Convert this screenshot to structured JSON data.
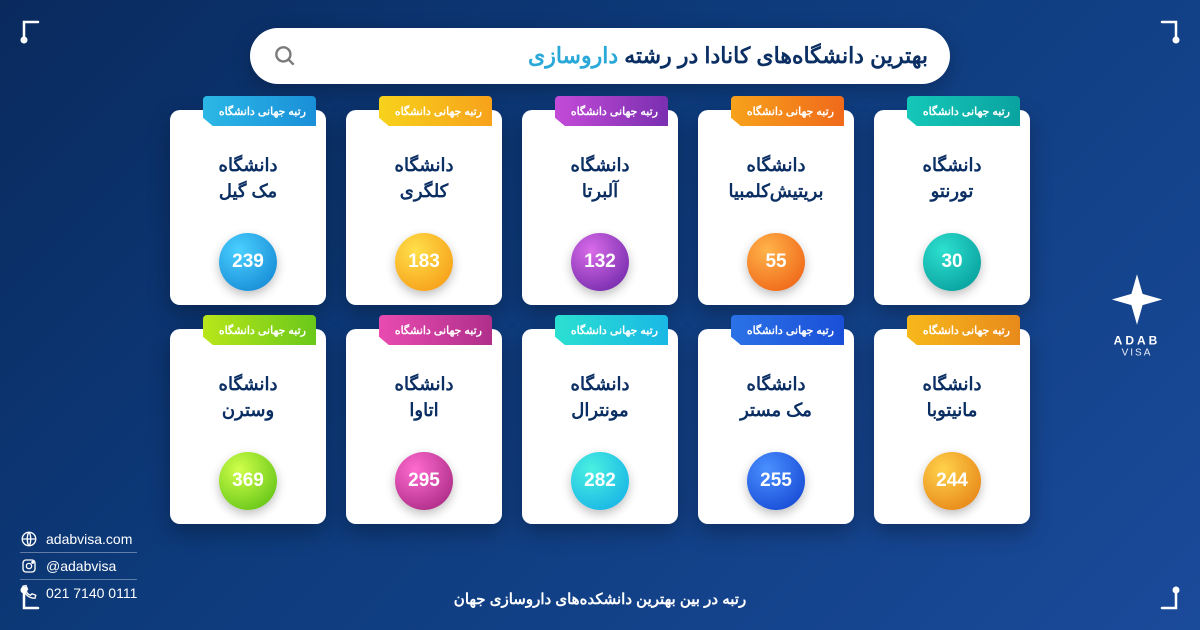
{
  "title_main": "بهترین دانشگاه‌های کانادا در رشته ",
  "title_highlight": "داروسازی",
  "tab_label": "رتبه جهانی دانشگاه",
  "caption": "رتبه در بین بهترین دانشکده‌های داروسازی جهان",
  "contact": {
    "web": "adabvisa.com",
    "social": "@adabvisa",
    "phone": "021 7140 0111"
  },
  "logo": {
    "line1": "ADAB",
    "line2": "VISA"
  },
  "tab_gradients": {
    "teal": "linear-gradient(90deg,#14c8b8 0%,#0aa3a0 100%)",
    "orange": "linear-gradient(90deg,#f7a21b 0%,#f06a1b 100%)",
    "violet": "linear-gradient(90deg,#c44bd8 0%,#7a2fb0 100%)",
    "yellow": "linear-gradient(90deg,#f7d21b 0%,#f7a21b 100%)",
    "cyan": "linear-gradient(90deg,#2bb8e6 0%,#1a8fd8 100%)",
    "gold": "linear-gradient(90deg,#f7b81b 0%,#e88a1b 100%)",
    "blue": "linear-gradient(90deg,#2b72e6 0%,#1a4fd8 100%)",
    "aqua": "linear-gradient(90deg,#2be0d0 0%,#1ab8e6 100%)",
    "pink": "linear-gradient(90deg,#e84bb0 0%,#b02f8a 100%)",
    "lime": "linear-gradient(90deg,#b8e61a 0%,#6ac81a 100%)"
  },
  "badge_gradients": {
    "teal": "radial-gradient(circle at 35% 30%,#2de0cf 0%,#0aa3a0 80%)",
    "orange": "radial-gradient(circle at 35% 30%,#ffb44a 0%,#f06a1b 80%)",
    "violet": "radial-gradient(circle at 35% 30%,#d96be8 0%,#7a2fb0 80%)",
    "yellow": "radial-gradient(circle at 35% 30%,#ffe04a 0%,#f7a21b 80%)",
    "cyan": "radial-gradient(circle at 35% 30%,#4ad0ff 0%,#1a8fd8 80%)",
    "gold": "radial-gradient(circle at 35% 30%,#ffd24a 0%,#e88a1b 80%)",
    "blue": "radial-gradient(circle at 35% 30%,#4a90ff 0%,#1a4fd8 80%)",
    "aqua": "radial-gradient(circle at 35% 30%,#4af0e0 0%,#1ab8e6 80%)",
    "pink": "radial-gradient(circle at 35% 30%,#ff6bd0 0%,#b02f8a 80%)",
    "lime": "radial-gradient(circle at 35% 30%,#d0ff4a 0%,#6ac81a 80%)"
  },
  "cards": [
    {
      "name_l1": "دانشگاه",
      "name_l2": "تورنتو",
      "rank": "30",
      "color": "teal"
    },
    {
      "name_l1": "دانشگاه",
      "name_l2": "بریتیش‌کلمبیا",
      "rank": "55",
      "color": "orange"
    },
    {
      "name_l1": "دانشگاه",
      "name_l2": "آلبرتا",
      "rank": "132",
      "color": "violet"
    },
    {
      "name_l1": "دانشگاه",
      "name_l2": "کلگری",
      "rank": "183",
      "color": "yellow"
    },
    {
      "name_l1": "دانشگاه",
      "name_l2": "مک گیل",
      "rank": "239",
      "color": "cyan"
    },
    {
      "name_l1": "دانشگاه",
      "name_l2": "مانیتوبا",
      "rank": "244",
      "color": "gold"
    },
    {
      "name_l1": "دانشگاه",
      "name_l2": "مک مستر",
      "rank": "255",
      "color": "blue"
    },
    {
      "name_l1": "دانشگاه",
      "name_l2": "مونترال",
      "rank": "282",
      "color": "aqua"
    },
    {
      "name_l1": "دانشگاه",
      "name_l2": "اتاوا",
      "rank": "295",
      "color": "pink"
    },
    {
      "name_l1": "دانشگاه",
      "name_l2": "وسترن",
      "rank": "369",
      "color": "lime"
    }
  ]
}
